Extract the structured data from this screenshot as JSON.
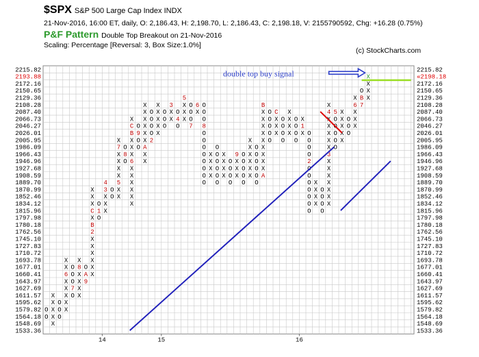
{
  "header": {
    "symbol": "$SPX",
    "description": "S&P 500 Large Cap Index  INDX",
    "ohlc_line": "21-Nov-2016, 16:00 ET, daily, O: 2,186.43, H: 2,198.70, L: 2,186.43, C: 2,198.18, V: 2155790592, Chg: +16.28 (0.75%)",
    "pattern_label": "P&F Pattern",
    "pattern_desc": "Double Top Breakout on 21-Nov-2016",
    "scaling": "Scaling: Percentage [Reversal: 3, Box Size:1.0%]",
    "copyright": "(c) StockCharts.com"
  },
  "colors": {
    "blue_line": "#2222bb",
    "red_line": "#dd0000",
    "green_line": "#99dd22",
    "arrow": "#2c3ec8",
    "month_mark": "#c00000",
    "grid": "#c8c8c8",
    "current_price": "#dd0000"
  },
  "chart_data": {
    "type": "point-and-figure",
    "title": "$SPX",
    "annotation": "double top buy signal",
    "price_levels": [
      "2215.82",
      "2193.88",
      "2172.16",
      "2150.65",
      "2129.36",
      "2108.28",
      "2087.40",
      "2066.73",
      "2046.27",
      "2026.01",
      "2005.95",
      "1986.09",
      "1966.43",
      "1946.96",
      "1927.68",
      "1908.59",
      "1889.70",
      "1870.99",
      "1852.46",
      "1834.12",
      "1815.96",
      "1797.98",
      "1780.18",
      "1762.56",
      "1745.10",
      "1727.83",
      "1710.72",
      "1693.78",
      "1677.01",
      "1660.41",
      "1643.97",
      "1627.69",
      "1611.57",
      "1595.62",
      "1579.82",
      "1564.18",
      "1548.69",
      "1533.36"
    ],
    "current_price": "2198.18",
    "x_labels": [
      {
        "text": "14",
        "col": 9
      },
      {
        "text": "15",
        "col": 18
      },
      {
        "text": "16",
        "col": 39
      }
    ],
    "columns": [
      {
        "type": "O",
        "top": "1579.82",
        "bottom": "1564.18",
        "marks": {}
      },
      {
        "type": "X",
        "top": "1611.57",
        "bottom": "1548.69",
        "marks": {}
      },
      {
        "type": "O",
        "top": "1595.62",
        "bottom": "1564.18",
        "marks": {
          "1611.57": "5"
        }
      },
      {
        "type": "X",
        "top": "1693.78",
        "bottom": "1579.82",
        "marks": {
          "1660.41": "6"
        }
      },
      {
        "type": "O",
        "top": "1677.01",
        "bottom": "1611.57",
        "marks": {
          "1627.69": "7"
        }
      },
      {
        "type": "X",
        "top": "1693.78",
        "bottom": "1611.57",
        "marks": {
          "1677.01": "8"
        }
      },
      {
        "type": "O",
        "top": "1677.01",
        "bottom": "1643.97",
        "marks": {
          "1660.41": "A",
          "1643.97": "9"
        }
      },
      {
        "type": "X",
        "top": "1870.99",
        "bottom": "1660.41",
        "marks": {
          "1762.56": "2",
          "1780.18": "B",
          "1815.96": "C"
        }
      },
      {
        "type": "O",
        "top": "1834.12",
        "bottom": "1797.98",
        "marks": {
          "1815.96": "1"
        }
      },
      {
        "type": "X",
        "top": "1889.70",
        "bottom": "1815.96",
        "marks": {
          "1870.99": "3",
          "1889.70": "4"
        }
      },
      {
        "type": "O",
        "top": "1870.99",
        "bottom": "1852.46",
        "marks": {}
      },
      {
        "type": "X",
        "top": "2005.95",
        "bottom": "1852.46",
        "marks": {
          "1889.70": "5",
          "1986.09": "7"
        }
      },
      {
        "type": "O",
        "top": "1986.09",
        "bottom": "1946.96",
        "marks": {
          "1966.43": "8"
        }
      },
      {
        "type": "X",
        "top": "2066.73",
        "bottom": "1834.12",
        "marks": {
          "1946.96": "6",
          "2026.01": "B",
          "2046.27": "C"
        }
      },
      {
        "type": "O",
        "top": "2046.27",
        "bottom": "1986.09",
        "marks": {
          "2026.01": "9"
        }
      },
      {
        "type": "X",
        "top": "2108.28",
        "bottom": "1946.96",
        "marks": {
          "1986.09": "A"
        }
      },
      {
        "type": "O",
        "top": "2087.40",
        "bottom": "2005.95",
        "marks": {
          "2005.95": "2"
        }
      },
      {
        "type": "X",
        "top": "2108.28",
        "bottom": "2026.01",
        "marks": {}
      },
      {
        "type": "O",
        "top": "2087.40",
        "bottom": "2046.27",
        "marks": {}
      },
      {
        "type": "X",
        "top": "2108.28",
        "bottom": "2066.73",
        "marks": {
          "2108.28": "3"
        }
      },
      {
        "type": "O",
        "top": "2087.40",
        "bottom": "2046.27",
        "marks": {
          "2066.73": "4"
        }
      },
      {
        "type": "X",
        "top": "2129.36",
        "bottom": "2066.73",
        "marks": {
          "2129.36": "5"
        }
      },
      {
        "type": "O",
        "top": "2108.28",
        "bottom": "2046.27",
        "marks": {
          "2046.27": "7"
        }
      },
      {
        "type": "X",
        "top": "2108.28",
        "bottom": "2087.40",
        "marks": {
          "2108.28": "6"
        }
      },
      {
        "type": "O",
        "top": "2108.28",
        "bottom": "1889.70",
        "marks": {
          "2046.27": "8"
        }
      },
      {
        "type": "X",
        "top": "1966.43",
        "bottom": "1908.59",
        "marks": {}
      },
      {
        "type": "O",
        "top": "1986.09",
        "bottom": "1889.70",
        "marks": {}
      },
      {
        "type": "X",
        "top": "1966.43",
        "bottom": "1908.59",
        "marks": {}
      },
      {
        "type": "O",
        "top": "1946.96",
        "bottom": "1889.70",
        "marks": {}
      },
      {
        "type": "X",
        "top": "1966.43",
        "bottom": "1908.59",
        "marks": {
          "1966.43": "9"
        }
      },
      {
        "type": "O",
        "top": "1966.43",
        "bottom": "1889.70",
        "marks": {}
      },
      {
        "type": "X",
        "top": "2005.95",
        "bottom": "1908.59",
        "marks": {}
      },
      {
        "type": "O",
        "top": "1986.09",
        "bottom": "1889.70",
        "marks": {}
      },
      {
        "type": "X",
        "top": "2108.28",
        "bottom": "1908.59",
        "marks": {
          "2108.28": "B",
          "1908.59": "A"
        }
      },
      {
        "type": "O",
        "top": "2087.40",
        "bottom": "2005.95",
        "marks": {}
      },
      {
        "type": "X",
        "top": "2087.40",
        "bottom": "2026.01",
        "marks": {
          "2087.40": "C"
        }
      },
      {
        "type": "O",
        "top": "2066.73",
        "bottom": "2005.95",
        "marks": {}
      },
      {
        "type": "X",
        "top": "2087.40",
        "bottom": "2026.01",
        "marks": {}
      },
      {
        "type": "O",
        "top": "2066.73",
        "bottom": "2005.95",
        "marks": {}
      },
      {
        "type": "X",
        "top": "2066.73",
        "bottom": "2026.01",
        "marks": {
          "2046.27": "1"
        }
      },
      {
        "type": "O",
        "top": "2026.01",
        "bottom": "1815.96",
        "marks": {
          "1946.96": "2"
        }
      },
      {
        "type": "X",
        "top": "1889.70",
        "bottom": "1834.12",
        "marks": {}
      },
      {
        "type": "O",
        "top": "1870.99",
        "bottom": "1815.96",
        "marks": {}
      },
      {
        "type": "X",
        "top": "2108.28",
        "bottom": "1834.12",
        "marks": {
          "1966.43": "3",
          "2087.40": "4"
        }
      },
      {
        "type": "O",
        "top": "2087.40",
        "bottom": "1986.09",
        "marks": {
          "2087.40": "5"
        }
      },
      {
        "type": "X",
        "top": "2087.40",
        "bottom": "2005.95",
        "marks": {}
      },
      {
        "type": "O",
        "top": "2066.73",
        "bottom": "2026.01",
        "marks": {}
      },
      {
        "type": "X",
        "top": "2129.36",
        "bottom": "2046.27",
        "marks": {
          "2108.28": "6"
        }
      },
      {
        "type": "O",
        "top": "2150.65",
        "bottom": "2108.28",
        "marks": {
          "2108.28": "7",
          "2129.36": "B"
        }
      },
      {
        "type": "X",
        "top": "2193.88",
        "bottom": "2129.36",
        "marks": {}
      }
    ],
    "trendlines": [
      {
        "name": "bullish support",
        "color": "#2222bb",
        "from": {
          "col": 13.2,
          "price": "1533.36"
        },
        "to": {
          "col": 44.3,
          "price": "1986.09"
        }
      },
      {
        "name": "resistance",
        "color": "#dd0000",
        "from": {
          "col": 42.2,
          "price": "2087.40"
        },
        "to": {
          "col": 45.5,
          "price": "2026.01"
        }
      },
      {
        "name": "bullish support",
        "color": "#2222bb",
        "from": {
          "col": 45.3,
          "price": "1815.96"
        },
        "to": {
          "col": 52.9,
          "price": "1946.96"
        }
      },
      {
        "name": "breakout level",
        "color": "#99dd22",
        "from": {
          "col": 48.5,
          "price": "2182.02"
        },
        "to": {
          "col": 56.0,
          "price": "2182.02"
        }
      }
    ],
    "arrow": {
      "from_col": 43.5,
      "to_col": 49.0,
      "price": "2204.84"
    }
  }
}
